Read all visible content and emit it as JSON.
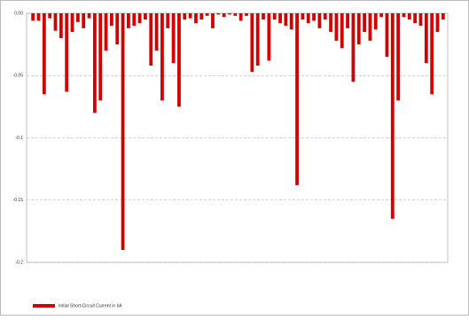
{
  "chart_data": {
    "type": "bar",
    "categories": [
      null,
      null,
      null,
      null,
      null,
      null,
      null,
      null,
      null,
      null,
      null,
      null,
      null,
      null,
      null,
      null,
      null,
      null,
      null,
      null,
      null,
      null,
      null,
      null,
      null,
      null,
      null,
      null,
      null,
      null,
      null,
      null,
      null,
      null,
      null,
      null,
      null,
      null,
      null,
      null,
      null,
      null,
      null,
      null,
      null,
      null,
      null,
      null,
      null,
      null,
      null,
      null,
      null,
      null,
      null,
      null,
      null,
      null,
      null,
      null,
      null,
      null,
      null,
      null,
      null,
      null,
      null,
      null,
      null,
      null,
      null,
      null,
      null,
      null
    ],
    "series": [
      {
        "name": "Initial Short-Circuit Current in kA",
        "color": "#d40000",
        "values": [
          -0.006,
          -0.006,
          -0.065,
          -0.004,
          -0.014,
          -0.02,
          -0.063,
          -0.015,
          -0.007,
          -0.012,
          -0.004,
          -0.08,
          -0.07,
          -0.03,
          -0.01,
          -0.025,
          -0.19,
          -0.012,
          -0.01,
          -0.008,
          -0.005,
          -0.042,
          -0.03,
          -0.07,
          -0.012,
          -0.04,
          -0.075,
          -0.005,
          -0.004,
          -0.008,
          -0.005,
          -0.002,
          -0.012,
          -0.001,
          -0.003,
          -0.001,
          -0.002,
          -0.006,
          -0.002,
          -0.047,
          -0.042,
          -0.005,
          -0.038,
          -0.005,
          -0.008,
          -0.01,
          -0.013,
          -0.138,
          -0.005,
          -0.008,
          -0.006,
          -0.012,
          -0.005,
          -0.015,
          -0.022,
          -0.028,
          -0.012,
          -0.055,
          -0.025,
          -0.015,
          -0.022,
          -0.013,
          -0.003,
          -0.035,
          -0.165,
          -0.07,
          -0.003,
          -0.005,
          -0.008,
          -0.01,
          -0.04,
          -0.065,
          -0.015,
          -0.005
        ]
      }
    ],
    "ylim": [
      -0.2,
      0
    ],
    "yticks": [
      {
        "value": 0,
        "label": "0.00"
      },
      -0.05,
      -0.1,
      -0.15,
      -0.2
    ],
    "grid": true
  }
}
